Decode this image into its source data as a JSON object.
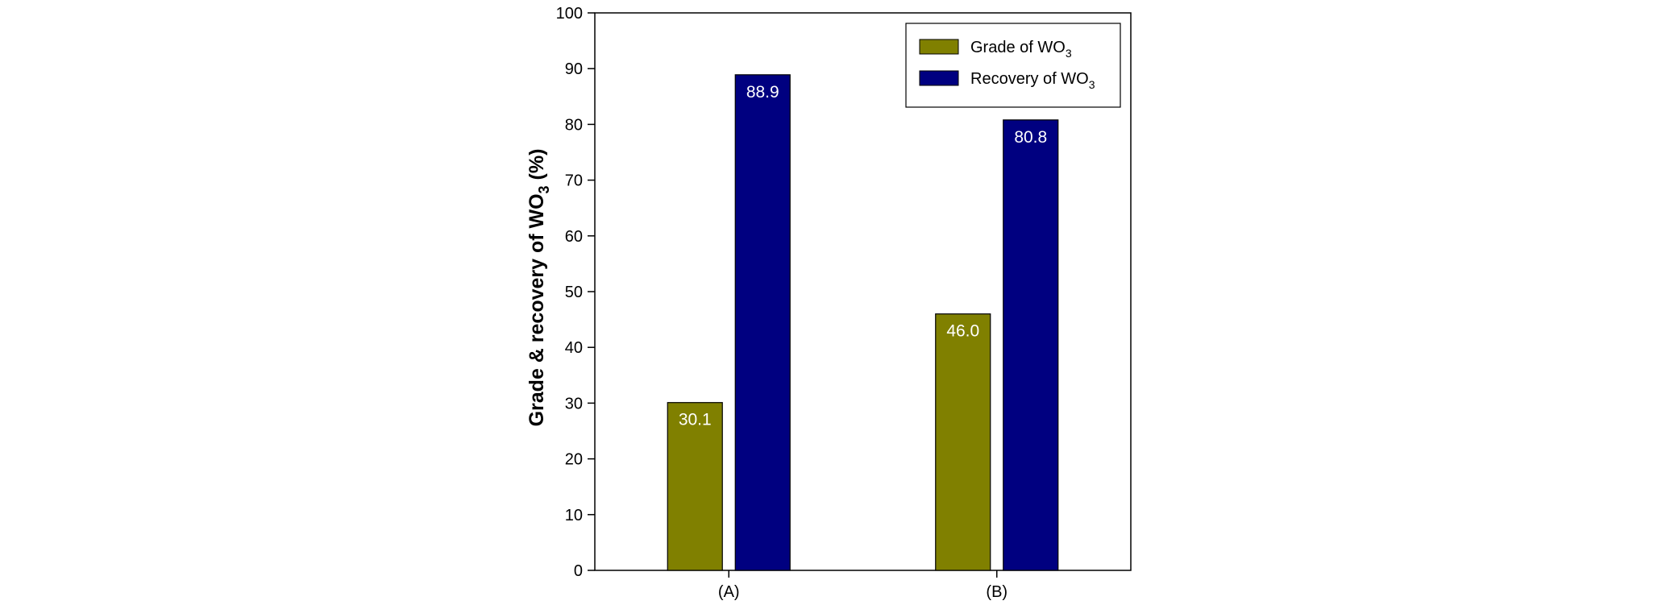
{
  "chart_data": {
    "type": "bar",
    "categories": [
      "(A)",
      "(B)"
    ],
    "series": [
      {
        "name": "Grade of WO",
        "subscript": "3",
        "color": "#808000",
        "values": [
          30.1,
          46.0
        ],
        "labels": [
          "30.1",
          "46.0"
        ]
      },
      {
        "name": "Recovery of WO",
        "subscript": "3",
        "color": "#000080",
        "values": [
          88.9,
          80.8
        ],
        "labels": [
          "88.9",
          "80.8"
        ]
      }
    ],
    "title": "",
    "xlabel": "",
    "ylabel": {
      "main": "Grade & recovery of WO",
      "subscript": "3",
      "suffix": " (%)"
    },
    "ylim": [
      0,
      100
    ],
    "yticks": [
      0,
      10,
      20,
      30,
      40,
      50,
      60,
      70,
      80,
      90,
      100
    ],
    "grid": false,
    "legend_position": "top-right"
  }
}
